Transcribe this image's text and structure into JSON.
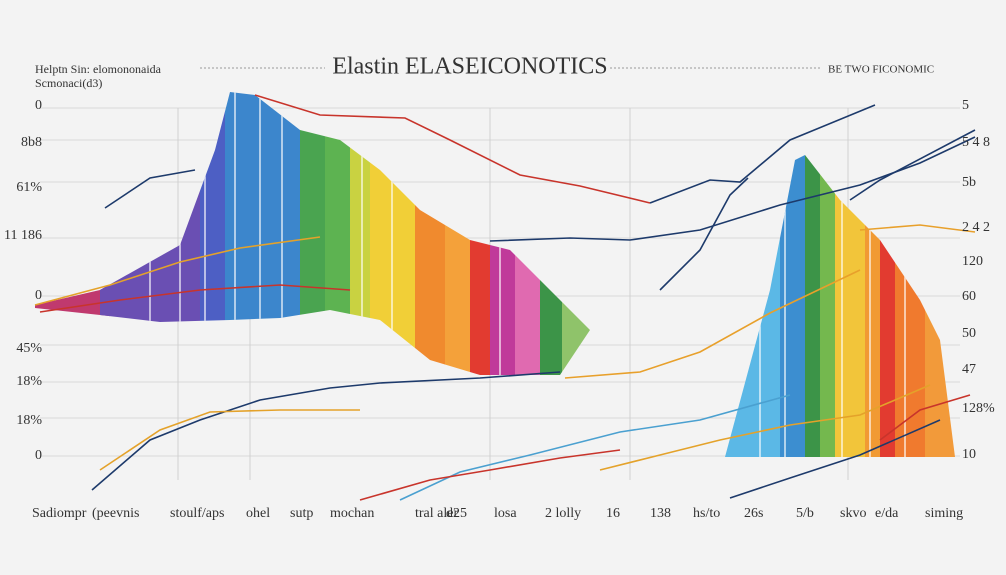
{
  "header": {
    "title": "Elastin ELASEICONOTICS",
    "left_lines": [
      "Helptn Sin: elomononaida",
      "Scmonaci(d3)"
    ],
    "right": "BE TWO FICONOMIC"
  },
  "left_axis": [
    "0",
    "8b8",
    "61%",
    "11 186",
    "0",
    "45%",
    "18%",
    "18%",
    "0"
  ],
  "right_axis": [
    "5",
    "5 4 8",
    "5b",
    "2 4 2",
    "120",
    "60",
    "50",
    "47",
    "128%",
    "10"
  ],
  "bottom_axis": [
    "Sadiompr",
    "(peevnis",
    "stoulf/aps",
    "ohel",
    "sutp",
    "mochan",
    "tral aler",
    "d25",
    "losa",
    "2 lolly",
    "16",
    "138",
    "hs/to",
    "26s",
    "5/b",
    "skvo",
    "e/da",
    "siming"
  ]
}
